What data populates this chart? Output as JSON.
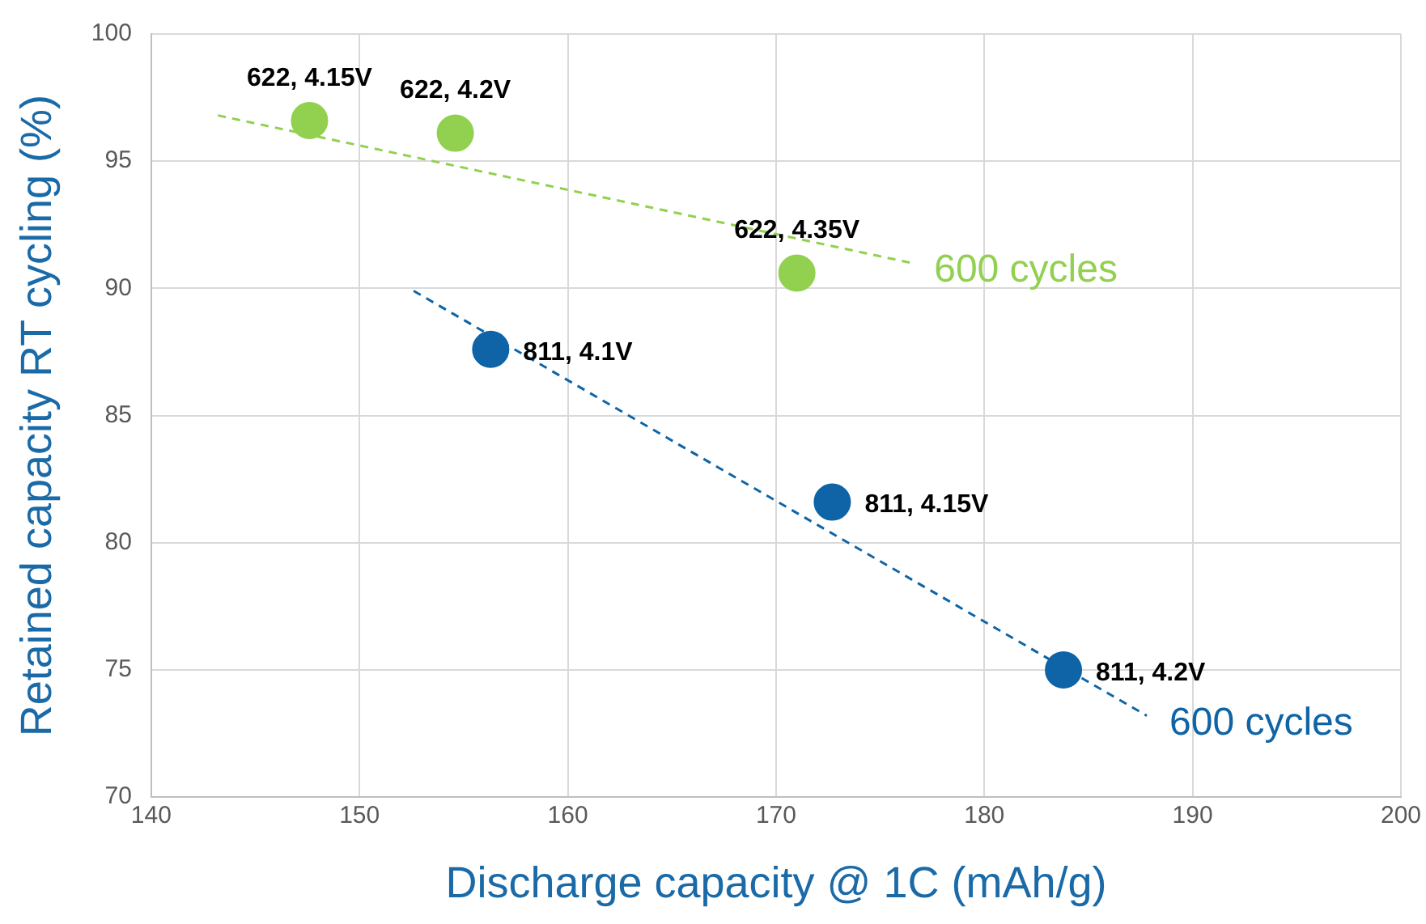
{
  "chart_data": {
    "type": "scatter",
    "xlabel": "Discharge capacity @ 1C (mAh/g)",
    "ylabel": "Retained capacity RT cycling (%)",
    "xlim": [
      140,
      200
    ],
    "xticks": [
      140,
      150,
      160,
      170,
      180,
      190,
      200
    ],
    "ylim": [
      70,
      100
    ],
    "yticks": [
      70,
      75,
      80,
      85,
      90,
      95,
      100
    ],
    "grid": true,
    "legend": false,
    "marker": "circle",
    "series": [
      {
        "color": "#92d050",
        "x": [
          147.6,
          154.6,
          171.0
        ],
        "values": [
          96.6,
          96.1,
          90.6
        ]
      },
      {
        "color": "#0e64a6",
        "x": [
          156.3,
          172.7,
          183.8
        ],
        "values": [
          87.6,
          81.6,
          75.0
        ]
      },
      {
        "type": "line",
        "name": "600 cycles",
        "color": "#92d050",
        "line_style": "dashed",
        "marker": "none",
        "x": [
          143.2,
          176.5
        ],
        "values": [
          96.8,
          91.0
        ]
      },
      {
        "type": "line",
        "name": "600 cycles",
        "color": "#0e64a6",
        "line_style": "dashed",
        "marker": "none",
        "x": [
          152.6,
          187.8
        ],
        "values": [
          89.9,
          73.2
        ]
      }
    ],
    "annotations": [
      {
        "text": "622, 4.15V",
        "x": 147.6,
        "y": 96.6
      },
      {
        "text": "622, 4.2V",
        "x": 154.6,
        "y": 96.1
      },
      {
        "text": "622, 4.35V",
        "x": 171.0,
        "y": 90.6
      },
      {
        "text": "811, 4.1V",
        "x": 156.3,
        "y": 87.6
      },
      {
        "text": "811, 4.15V",
        "x": 172.7,
        "y": 81.6
      },
      {
        "text": "811, 4.2V",
        "x": 183.8,
        "y": 75.0
      }
    ]
  }
}
